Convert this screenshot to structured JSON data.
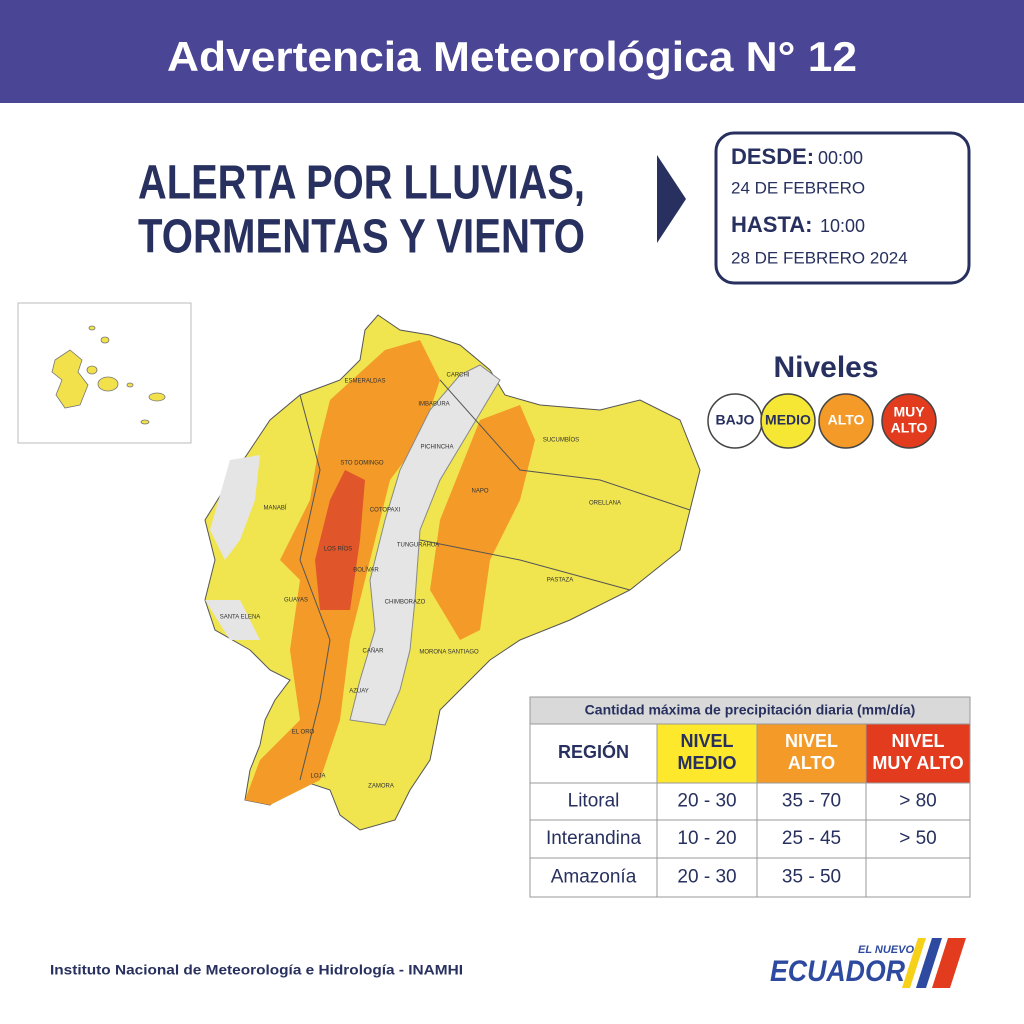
{
  "header": {
    "title": "Advertencia Meteorológica N° 12"
  },
  "alert": {
    "lines": [
      "ALERTA POR LLUVIAS,",
      "TORMENTAS Y VIENTO"
    ]
  },
  "period": {
    "from_label": "DESDE:",
    "from_time": "00:00",
    "from_date": "24 DE FEBRERO",
    "to_label": "HASTA:",
    "to_time": "10:00",
    "to_date": "28 DE FEBRERO 2024"
  },
  "legend": {
    "title": "Niveles",
    "levels": [
      {
        "label": [
          "BAJO"
        ],
        "color": "#ffffff"
      },
      {
        "label": [
          "MEDIO"
        ],
        "color": "#f7e735"
      },
      {
        "label": [
          "ALTO"
        ],
        "color": "#f39a28"
      },
      {
        "label": [
          "MUY",
          "ALTO"
        ],
        "color": "#e23b1e"
      }
    ]
  },
  "map": {
    "labels": [
      "ESMERALDAS",
      "CARCHI",
      "IMBABURA",
      "PICHINCHA",
      "STO DOMINGO",
      "SUCUMBÍOS",
      "NAPO",
      "ORELLANA",
      "MANABÍ",
      "COTOPAXI",
      "LOS RÍOS",
      "TUNGURAHUA",
      "BOLÍVAR",
      "PASTAZA",
      "SANTA ELENA",
      "GUAYAS",
      "CHIMBORAZO",
      "CAÑAR",
      "MORONA SANTIAGO",
      "AZUAY",
      "EL ORO",
      "LOJA",
      "ZAMORA"
    ]
  },
  "table": {
    "caption": "Cantidad máxima de precipitación diaria (mm/día)",
    "header": [
      [
        "REGIÓN"
      ],
      [
        "NIVEL",
        "MEDIO"
      ],
      [
        "NIVEL",
        "ALTO"
      ],
      [
        "NIVEL",
        "MUY ALTO"
      ]
    ],
    "rows": [
      [
        "Litoral",
        "20 - 30",
        "35 - 70",
        "> 80"
      ],
      [
        "Interandina",
        "10 - 20",
        "25 - 45",
        "> 50"
      ],
      [
        "Amazonía",
        "20 - 30",
        "35 - 50"
      ]
    ]
  },
  "footer": {
    "institute": "Instituto Nacional de Meteorología e Hidrología - INAMHI",
    "logo_top": "EL NUEVO",
    "logo": "ECUADOR"
  }
}
